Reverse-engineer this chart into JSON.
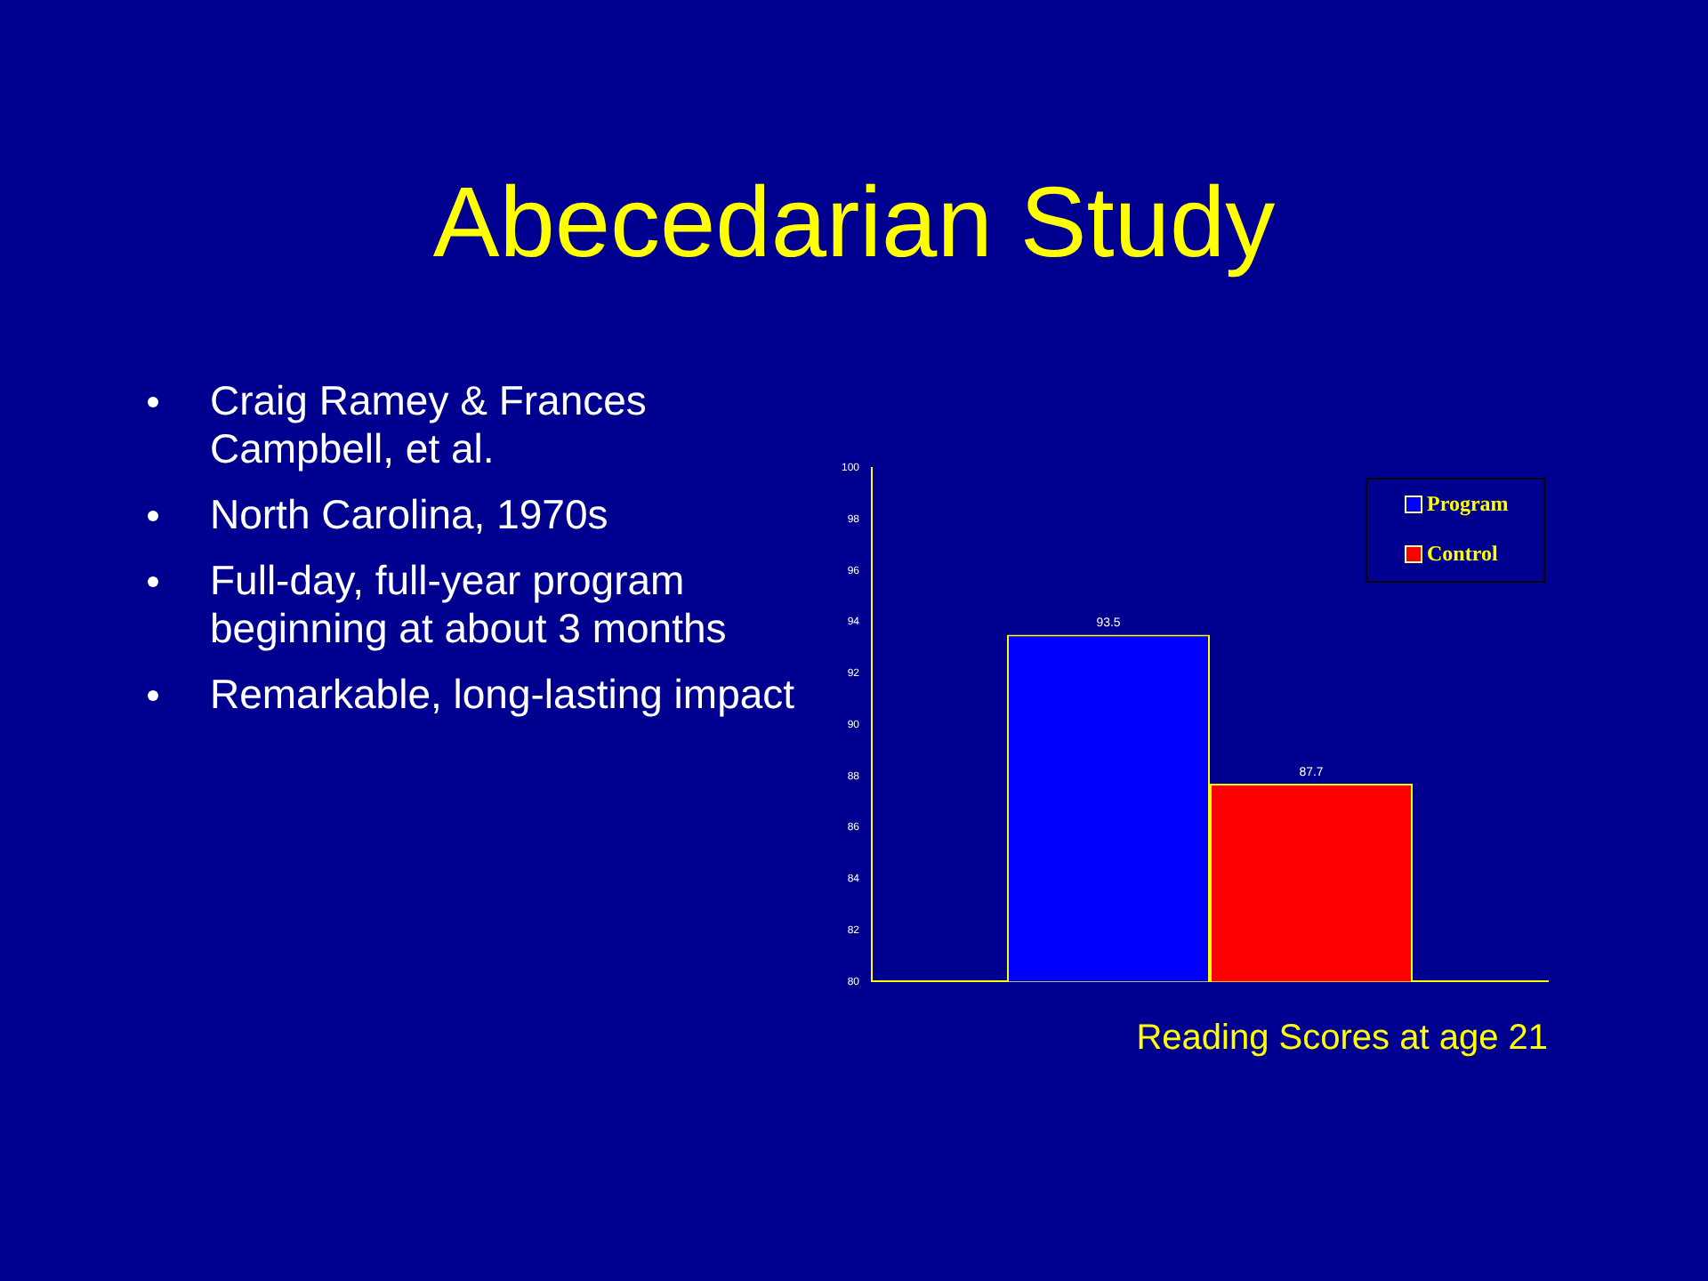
{
  "chart_data": {
    "type": "bar",
    "title": "Abecedarian Study",
    "xlabel": "Reading Scores at age 21",
    "annotations": [
      "Craig Ramey & Frances Campbell, et al.",
      "North Carolina, 1970s",
      "Full-day, full-year program beginning at about 3 months",
      "Remarkable, long-lasting impact"
    ],
    "categories": [
      null
    ],
    "series": [
      {
        "name": "Program",
        "color": "#0000ff",
        "values": [
          93.5
        ]
      },
      {
        "name": "Control",
        "color": "#ff0000",
        "values": [
          87.7
        ]
      }
    ],
    "ylim": [
      80,
      100
    ],
    "yticks": [
      80,
      82,
      84,
      86,
      88,
      90,
      92,
      94,
      96,
      98,
      100
    ],
    "data_labels": true,
    "legend": "top right",
    "grid": false
  }
}
